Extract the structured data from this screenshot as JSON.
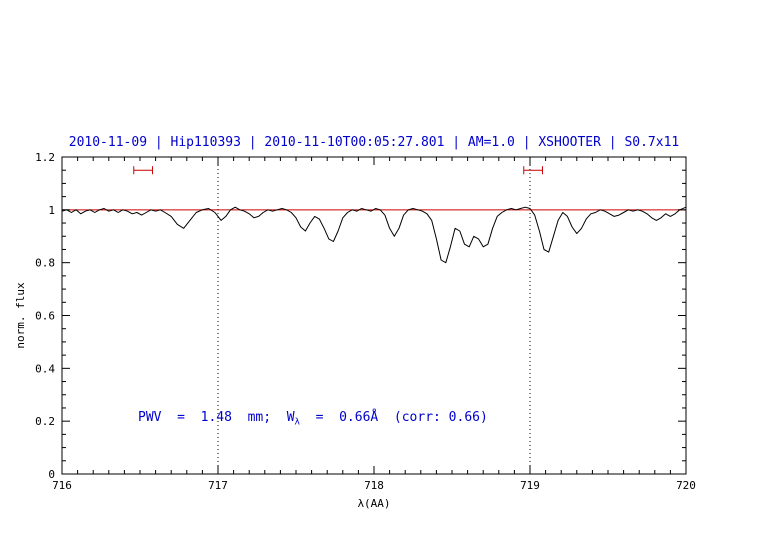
{
  "annotation": {
    "pre": "PWV  =  1.48  mm;  W",
    "sub": "λ",
    "post": "  =  0.66Å  (corr: 0.66)"
  },
  "colors": {
    "title": "#0000cc",
    "annotation": "#0000cc",
    "spectrum": "#000000",
    "continuum": "#cc0000",
    "marker": "#cc0000",
    "axis": "#000000"
  },
  "chart_data": {
    "type": "line",
    "title": "2010-11-09 | Hip110393 | 2010-11-10T00:05:27.801 | AM=1.0 | XSHOOTER | S0.7x11",
    "xlabel": "λ(AA)",
    "ylabel": "norm. flux",
    "xlim": [
      716,
      720
    ],
    "ylim": [
      0,
      1.2
    ],
    "grid": false,
    "legend": false,
    "xticks": [
      716,
      717,
      718,
      719,
      720
    ],
    "xtick_labels": [
      "716",
      "717",
      "718",
      "719",
      "720"
    ],
    "yticks": [
      0,
      0.2,
      0.4,
      0.6,
      0.8,
      1,
      1.2
    ],
    "ytick_labels": [
      "0",
      "0.2",
      "0.4",
      "0.6",
      "0.8",
      "1",
      "1.2"
    ],
    "reference_lines": {
      "vertical_dotted": [
        717,
        719
      ],
      "continuum_y": 1.0
    },
    "markers": [
      {
        "x": 716.52,
        "y": 1.15,
        "halfwidth": 0.06
      },
      {
        "x": 719.02,
        "y": 1.15,
        "halfwidth": 0.06
      }
    ],
    "series": [
      {
        "name": "telluric-spectrum",
        "x": [
          716.0,
          716.03,
          716.06,
          716.09,
          716.12,
          716.15,
          716.18,
          716.21,
          716.24,
          716.27,
          716.3,
          716.33,
          716.36,
          716.39,
          716.42,
          716.45,
          716.48,
          716.51,
          716.54,
          716.57,
          716.6,
          716.63,
          716.66,
          716.7,
          716.74,
          716.78,
          716.82,
          716.86,
          716.9,
          716.94,
          716.98,
          717.0,
          717.02,
          717.05,
          717.08,
          717.11,
          717.14,
          717.17,
          717.2,
          717.23,
          717.26,
          717.29,
          717.32,
          717.35,
          717.38,
          717.41,
          717.44,
          717.47,
          717.5,
          717.53,
          717.56,
          717.59,
          717.62,
          717.65,
          717.68,
          717.71,
          717.74,
          717.77,
          717.8,
          717.83,
          717.86,
          717.89,
          717.92,
          717.95,
          717.98,
          718.01,
          718.04,
          718.07,
          718.1,
          718.13,
          718.16,
          718.19,
          718.22,
          718.25,
          718.28,
          718.31,
          718.34,
          718.37,
          718.4,
          718.43,
          718.46,
          718.49,
          718.52,
          718.55,
          718.58,
          718.61,
          718.64,
          718.67,
          718.7,
          718.73,
          718.76,
          718.79,
          718.82,
          718.85,
          718.88,
          718.91,
          718.94,
          718.97,
          719.0,
          719.03,
          719.06,
          719.09,
          719.12,
          719.15,
          719.18,
          719.21,
          719.24,
          719.27,
          719.3,
          719.33,
          719.36,
          719.39,
          719.42,
          719.45,
          719.48,
          719.51,
          719.54,
          719.57,
          719.6,
          719.63,
          719.66,
          719.69,
          719.72,
          719.75,
          719.78,
          719.81,
          719.84,
          719.87,
          719.9,
          719.93,
          719.96,
          720.0
        ],
        "y": [
          0.995,
          1.0,
          0.99,
          1.0,
          0.985,
          0.995,
          1.0,
          0.99,
          1.0,
          1.005,
          0.995,
          1.0,
          0.99,
          1.0,
          0.995,
          0.985,
          0.99,
          0.98,
          0.99,
          1.0,
          0.995,
          1.0,
          0.99,
          0.975,
          0.945,
          0.93,
          0.96,
          0.99,
          1.0,
          1.005,
          0.99,
          0.975,
          0.96,
          0.975,
          1.0,
          1.01,
          1.0,
          0.995,
          0.985,
          0.97,
          0.975,
          0.99,
          1.0,
          0.995,
          1.0,
          1.005,
          1.0,
          0.99,
          0.97,
          0.935,
          0.92,
          0.95,
          0.975,
          0.965,
          0.93,
          0.89,
          0.88,
          0.92,
          0.97,
          0.99,
          1.0,
          0.995,
          1.005,
          1.0,
          0.995,
          1.005,
          1.0,
          0.98,
          0.93,
          0.9,
          0.93,
          0.98,
          1.0,
          1.005,
          1.0,
          0.995,
          0.985,
          0.96,
          0.89,
          0.81,
          0.8,
          0.86,
          0.93,
          0.92,
          0.87,
          0.86,
          0.9,
          0.89,
          0.86,
          0.87,
          0.93,
          0.975,
          0.99,
          1.0,
          1.005,
          1.0,
          1.005,
          1.01,
          1.005,
          0.98,
          0.92,
          0.85,
          0.84,
          0.9,
          0.96,
          0.99,
          0.975,
          0.935,
          0.91,
          0.93,
          0.965,
          0.985,
          0.99,
          1.0,
          0.995,
          0.985,
          0.975,
          0.98,
          0.99,
          1.0,
          0.995,
          1.0,
          0.995,
          0.985,
          0.97,
          0.96,
          0.97,
          0.985,
          0.975,
          0.985,
          1.0,
          1.01
        ]
      }
    ]
  }
}
